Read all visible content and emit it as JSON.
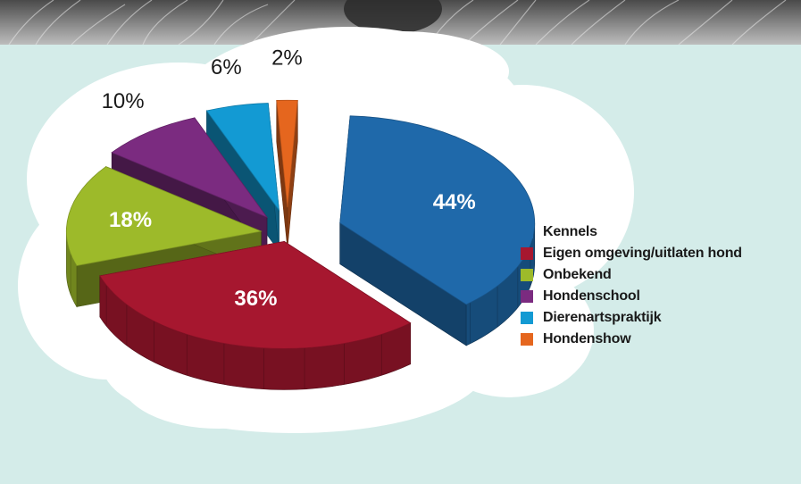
{
  "chart_data": {
    "type": "pie",
    "categories": [
      "Kennels",
      "Eigen omgeving/uitlaten hond",
      "Onbekend",
      "Hondenschool",
      "Dierenartspraktijk",
      "Hondenshow"
    ],
    "values": [
      44,
      36,
      18,
      10,
      6,
      2
    ],
    "value_labels": [
      "44%",
      "36%",
      "18%",
      "10%",
      "6%",
      "2%"
    ],
    "colors": [
      "#1f69aa",
      "#a6172f",
      "#9dba2a",
      "#7b2b80",
      "#139ad3",
      "#e5661e"
    ],
    "legend_position": "right",
    "style": "exploded 3D pie"
  }
}
